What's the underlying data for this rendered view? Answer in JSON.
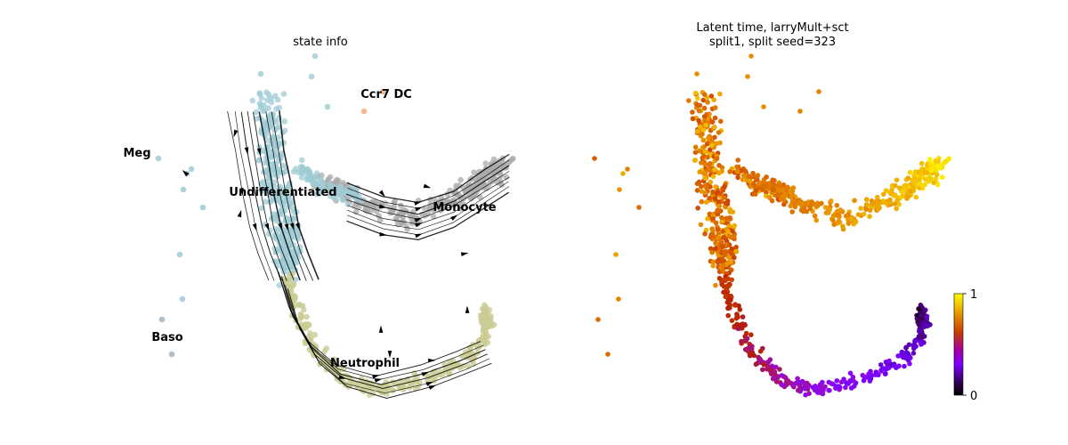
{
  "chart_data": [
    {
      "type": "scatter",
      "title": "state info",
      "xlabel": "",
      "ylabel": "",
      "axes_visible": false,
      "overlay": "velocity stream arrows",
      "clusters": [
        {
          "name": "Undifferentiated",
          "color": "#9fcbd4"
        },
        {
          "name": "Monocyte",
          "color": "#aaaaaa"
        },
        {
          "name": "Neutrophil",
          "color": "#c9cc94"
        },
        {
          "name": "Meg",
          "color": "#9fcbd4"
        },
        {
          "name": "Baso",
          "color": "#aab8c6"
        },
        {
          "name": "Ccr7 DC",
          "color": "#f2b48a"
        }
      ],
      "labels": [
        "Undifferentiated",
        "Monocyte",
        "Neutrophil",
        "Meg",
        "Baso",
        "Ccr7 DC"
      ]
    },
    {
      "type": "scatter",
      "title_lines": [
        "Latent time, larryMult+sct",
        "split1, split seed=323"
      ],
      "xlabel": "",
      "ylabel": "",
      "axes_visible": false,
      "colormap": "gnuplot",
      "colorbar": {
        "min": 0,
        "max": 1,
        "ticks": [
          "1",
          "0"
        ],
        "placement": "right"
      }
    }
  ]
}
